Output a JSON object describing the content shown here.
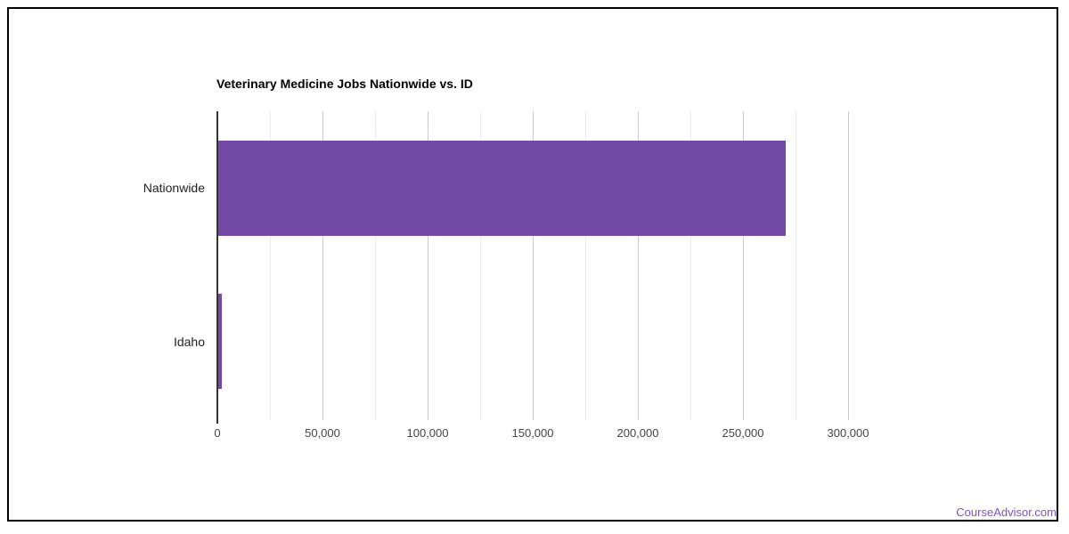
{
  "chart_data": {
    "type": "bar",
    "orientation": "horizontal",
    "title": "Veterinary Medicine Jobs Nationwide vs. ID",
    "categories": [
      "Nationwide",
      "Idaho"
    ],
    "values": [
      270000,
      1700
    ],
    "xlabel": "",
    "ylabel": "",
    "xlim": [
      0,
      300000
    ],
    "x_major_ticks": [
      {
        "value": 0,
        "label": "0"
      },
      {
        "value": 50000,
        "label": "50,000"
      },
      {
        "value": 100000,
        "label": "100,000"
      },
      {
        "value": 150000,
        "label": "150,000"
      },
      {
        "value": 200000,
        "label": "200,000"
      },
      {
        "value": 250000,
        "label": "250,000"
      },
      {
        "value": 300000,
        "label": "300,000"
      }
    ],
    "x_minor_tick_interval": 25000,
    "grid": true,
    "legend": "none",
    "bar_color": "#7249a5"
  },
  "colors": {
    "bar": "#7249a5",
    "major_grid": "#cccccc",
    "minor_grid": "#ebebeb",
    "axis_line": "#333333",
    "title_text": "#000000",
    "category_text": "#222222",
    "tick_text": "#444444",
    "frame_border": "#000000",
    "link_text": "#7c53c3"
  },
  "footer": {
    "link_label": "CourseAdvisor.com"
  }
}
